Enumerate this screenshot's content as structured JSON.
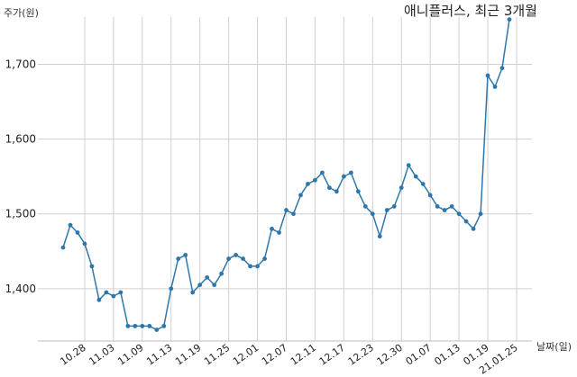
{
  "chart_data": {
    "type": "line",
    "title": "애니플러스, 최근 3개월",
    "ylabel": "주가(원)",
    "xlabel": "날짜(일)",
    "ylim": [
      1330,
      1780
    ],
    "yticks": [
      1400,
      1500,
      1600,
      1700
    ],
    "ytick_labels": [
      "1,400",
      "1,500",
      "1,600",
      "1,700"
    ],
    "xtick_labels": [
      "10.28",
      "11.03",
      "11.09",
      "11.13",
      "11.19",
      "11.25",
      "12.01",
      "12.07",
      "12.11",
      "12.17",
      "12.23",
      "12.30",
      "01.07",
      "01.13",
      "01.19",
      "21.01.25"
    ],
    "xtick_index": [
      3,
      7,
      11,
      15,
      19,
      23,
      27,
      31,
      35,
      39,
      43,
      47,
      51,
      55,
      59,
      63
    ],
    "grid": true,
    "color": "#2e77ad",
    "series": [
      {
        "values": [
          1455,
          1485,
          1475,
          1460,
          1430,
          1385,
          1395,
          1390,
          1395,
          1350,
          1350,
          1350,
          1350,
          1345,
          1350,
          1400,
          1440,
          1445,
          1395,
          1405,
          1415,
          1405,
          1420,
          1440,
          1445,
          1440,
          1430,
          1430,
          1440,
          1480,
          1475,
          1505,
          1500,
          1525,
          1540,
          1545,
          1555,
          1535,
          1530,
          1550,
          1555,
          1530,
          1510,
          1500,
          1470,
          1505,
          1510,
          1535,
          1565,
          1550,
          1540,
          1525,
          1510,
          1505,
          1510,
          1500,
          1490,
          1480,
          1500,
          1685,
          1670,
          1695,
          1760
        ]
      }
    ]
  }
}
